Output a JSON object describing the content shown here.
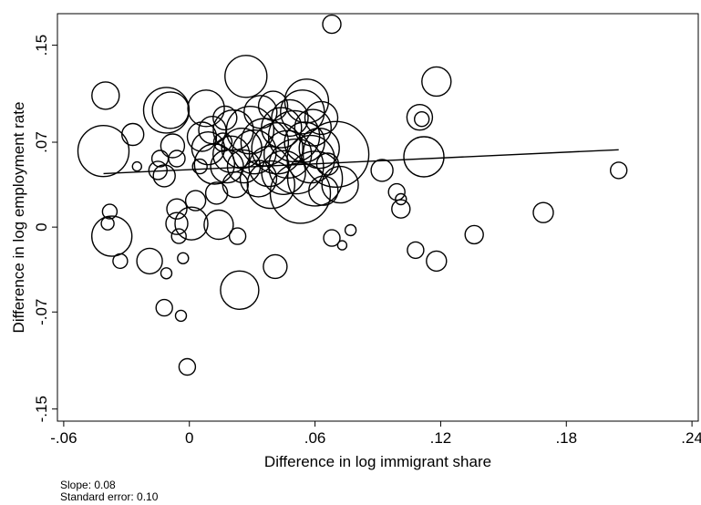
{
  "chart_data": {
    "type": "scatter",
    "title": "",
    "xlabel": "Difference in log immigrant share",
    "ylabel": "Difference in log employment rate",
    "xlim": [
      -0.063,
      0.243
    ],
    "ylim": [
      -0.16,
      0.176
    ],
    "x_ticks": [
      -0.06,
      0,
      0.06,
      0.12,
      0.18,
      0.24
    ],
    "x_tick_labels": [
      "-.06",
      "0",
      ".06",
      ".12",
      ".18",
      ".24"
    ],
    "y_ticks": [
      -0.15,
      -0.07,
      0,
      0.07,
      0.15
    ],
    "y_tick_labels": [
      "-.15",
      "-.07",
      "0",
      ".07",
      ".15"
    ],
    "grid": false,
    "marker": "hollow circles sized by weight",
    "fit_line": {
      "slope": 0.08,
      "x": [
        -0.041,
        0.205
      ],
      "y": [
        0.0441,
        0.0638
      ]
    },
    "series": [
      {
        "points": [
          {
            "x": -0.041,
            "y": 0.0627,
            "w": 28
          },
          {
            "x": -0.04,
            "y": 0.1084,
            "w": 15
          },
          {
            "x": -0.038,
            "y": 0.0128,
            "w": 8
          },
          {
            "x": -0.039,
            "y": 0.003,
            "w": 7
          },
          {
            "x": -0.037,
            "y": -0.0075,
            "w": 22
          },
          {
            "x": -0.033,
            "y": -0.028,
            "w": 8
          },
          {
            "x": -0.027,
            "y": 0.0764,
            "w": 12
          },
          {
            "x": -0.025,
            "y": 0.05,
            "w": 5
          },
          {
            "x": -0.019,
            "y": -0.028,
            "w": 14
          },
          {
            "x": -0.015,
            "y": 0.0468,
            "w": 10
          },
          {
            "x": -0.014,
            "y": 0.0565,
            "w": 9
          },
          {
            "x": -0.012,
            "y": 0.0423,
            "w": 12
          },
          {
            "x": -0.011,
            "y": -0.0381,
            "w": 6
          },
          {
            "x": -0.012,
            "y": -0.0665,
            "w": 9
          },
          {
            "x": -0.011,
            "y": 0.0964,
            "w": 25
          },
          {
            "x": -0.009,
            "y": 0.0964,
            "w": 20
          },
          {
            "x": -0.008,
            "y": 0.067,
            "w": 13
          },
          {
            "x": -0.006,
            "y": 0.0565,
            "w": 9
          },
          {
            "x": -0.006,
            "y": 0.015,
            "w": 11
          },
          {
            "x": -0.006,
            "y": 0.003,
            "w": 12
          },
          {
            "x": -0.005,
            "y": -0.0075,
            "w": 8
          },
          {
            "x": -0.004,
            "y": -0.0731,
            "w": 6
          },
          {
            "x": -0.003,
            "y": -0.0257,
            "w": 6
          },
          {
            "x": -0.001,
            "y": -0.1153,
            "w": 9
          },
          {
            "x": 0.001,
            "y": 0.003,
            "w": 18
          },
          {
            "x": 0.003,
            "y": 0.0218,
            "w": 11
          },
          {
            "x": 0.005,
            "y": 0.05,
            "w": 8
          },
          {
            "x": 0.006,
            "y": 0.0745,
            "w": 16
          },
          {
            "x": 0.008,
            "y": 0.098,
            "w": 20
          },
          {
            "x": 0.009,
            "y": 0.065,
            "w": 18
          },
          {
            "x": 0.011,
            "y": 0.08,
            "w": 15
          },
          {
            "x": 0.012,
            "y": 0.052,
            "w": 22
          },
          {
            "x": 0.013,
            "y": 0.028,
            "w": 12
          },
          {
            "x": 0.014,
            "y": 0.002,
            "w": 16
          },
          {
            "x": 0.016,
            "y": 0.07,
            "w": 10
          },
          {
            "x": 0.017,
            "y": 0.09,
            "w": 13
          },
          {
            "x": 0.018,
            "y": 0.05,
            "w": 18
          },
          {
            "x": 0.02,
            "y": 0.06,
            "w": 20
          },
          {
            "x": 0.021,
            "y": 0.08,
            "w": 22
          },
          {
            "x": 0.022,
            "y": 0.035,
            "w": 14
          },
          {
            "x": 0.023,
            "y": -0.0075,
            "w": 9
          },
          {
            "x": 0.024,
            "y": -0.052,
            "w": 21
          },
          {
            "x": 0.025,
            "y": 0.065,
            "w": 22
          },
          {
            "x": 0.026,
            "y": 0.05,
            "w": 18
          },
          {
            "x": 0.027,
            "y": 0.1243,
            "w": 23
          },
          {
            "x": 0.029,
            "y": 0.08,
            "w": 26
          },
          {
            "x": 0.031,
            "y": 0.062,
            "w": 24
          },
          {
            "x": 0.033,
            "y": 0.04,
            "w": 20
          },
          {
            "x": 0.034,
            "y": 0.095,
            "w": 18
          },
          {
            "x": 0.036,
            "y": 0.07,
            "w": 26
          },
          {
            "x": 0.038,
            "y": 0.05,
            "w": 22
          },
          {
            "x": 0.039,
            "y": 0.035,
            "w": 26
          },
          {
            "x": 0.04,
            "y": 0.1,
            "w": 16
          },
          {
            "x": 0.041,
            "y": -0.0325,
            "w": 13
          },
          {
            "x": 0.042,
            "y": 0.065,
            "w": 28
          },
          {
            "x": 0.044,
            "y": 0.082,
            "w": 22
          },
          {
            "x": 0.045,
            "y": 0.045,
            "w": 24
          },
          {
            "x": 0.047,
            "y": 0.06,
            "w": 26
          },
          {
            "x": 0.048,
            "y": 0.09,
            "w": 20
          },
          {
            "x": 0.05,
            "y": 0.075,
            "w": 28
          },
          {
            "x": 0.051,
            "y": 0.05,
            "w": 30
          },
          {
            "x": 0.053,
            "y": 0.028,
            "w": 33
          },
          {
            "x": 0.054,
            "y": 0.095,
            "w": 24
          },
          {
            "x": 0.055,
            "y": 0.07,
            "w": 22
          },
          {
            "x": 0.056,
            "y": 0.104,
            "w": 24
          },
          {
            "x": 0.058,
            "y": 0.056,
            "w": 26
          },
          {
            "x": 0.059,
            "y": 0.082,
            "w": 20
          },
          {
            "x": 0.06,
            "y": 0.04,
            "w": 30
          },
          {
            "x": 0.062,
            "y": 0.065,
            "w": 22
          },
          {
            "x": 0.063,
            "y": 0.09,
            "w": 18
          },
          {
            "x": 0.064,
            "y": 0.03,
            "w": 16
          },
          {
            "x": 0.066,
            "y": 0.052,
            "w": 12
          },
          {
            "x": 0.068,
            "y": 0.1673,
            "w": 10
          },
          {
            "x": 0.068,
            "y": -0.009,
            "w": 9
          },
          {
            "x": 0.07,
            "y": 0.06,
            "w": 36
          },
          {
            "x": 0.072,
            "y": 0.035,
            "w": 20
          },
          {
            "x": 0.073,
            "y": -0.015,
            "w": 5
          },
          {
            "x": 0.077,
            "y": -0.0025,
            "w": 6
          },
          {
            "x": 0.092,
            "y": 0.0468,
            "w": 12
          },
          {
            "x": 0.099,
            "y": 0.029,
            "w": 9
          },
          {
            "x": 0.101,
            "y": 0.023,
            "w": 6
          },
          {
            "x": 0.101,
            "y": 0.015,
            "w": 10
          },
          {
            "x": 0.108,
            "y": -0.019,
            "w": 9
          },
          {
            "x": 0.11,
            "y": 0.0905,
            "w": 14
          },
          {
            "x": 0.111,
            "y": 0.089,
            "w": 8
          },
          {
            "x": 0.112,
            "y": 0.058,
            "w": 22
          },
          {
            "x": 0.118,
            "y": -0.028,
            "w": 11
          },
          {
            "x": 0.118,
            "y": 0.1201,
            "w": 16
          },
          {
            "x": 0.136,
            "y": -0.0062,
            "w": 10
          },
          {
            "x": 0.169,
            "y": 0.012,
            "w": 11
          },
          {
            "x": 0.205,
            "y": 0.0468,
            "w": 9
          }
        ]
      }
    ],
    "annotations": [
      "Slope: 0.08",
      "Standard error: 0.10"
    ]
  },
  "notes": {
    "slope": "Slope: 0.08",
    "se": "Standard error: 0.10"
  }
}
